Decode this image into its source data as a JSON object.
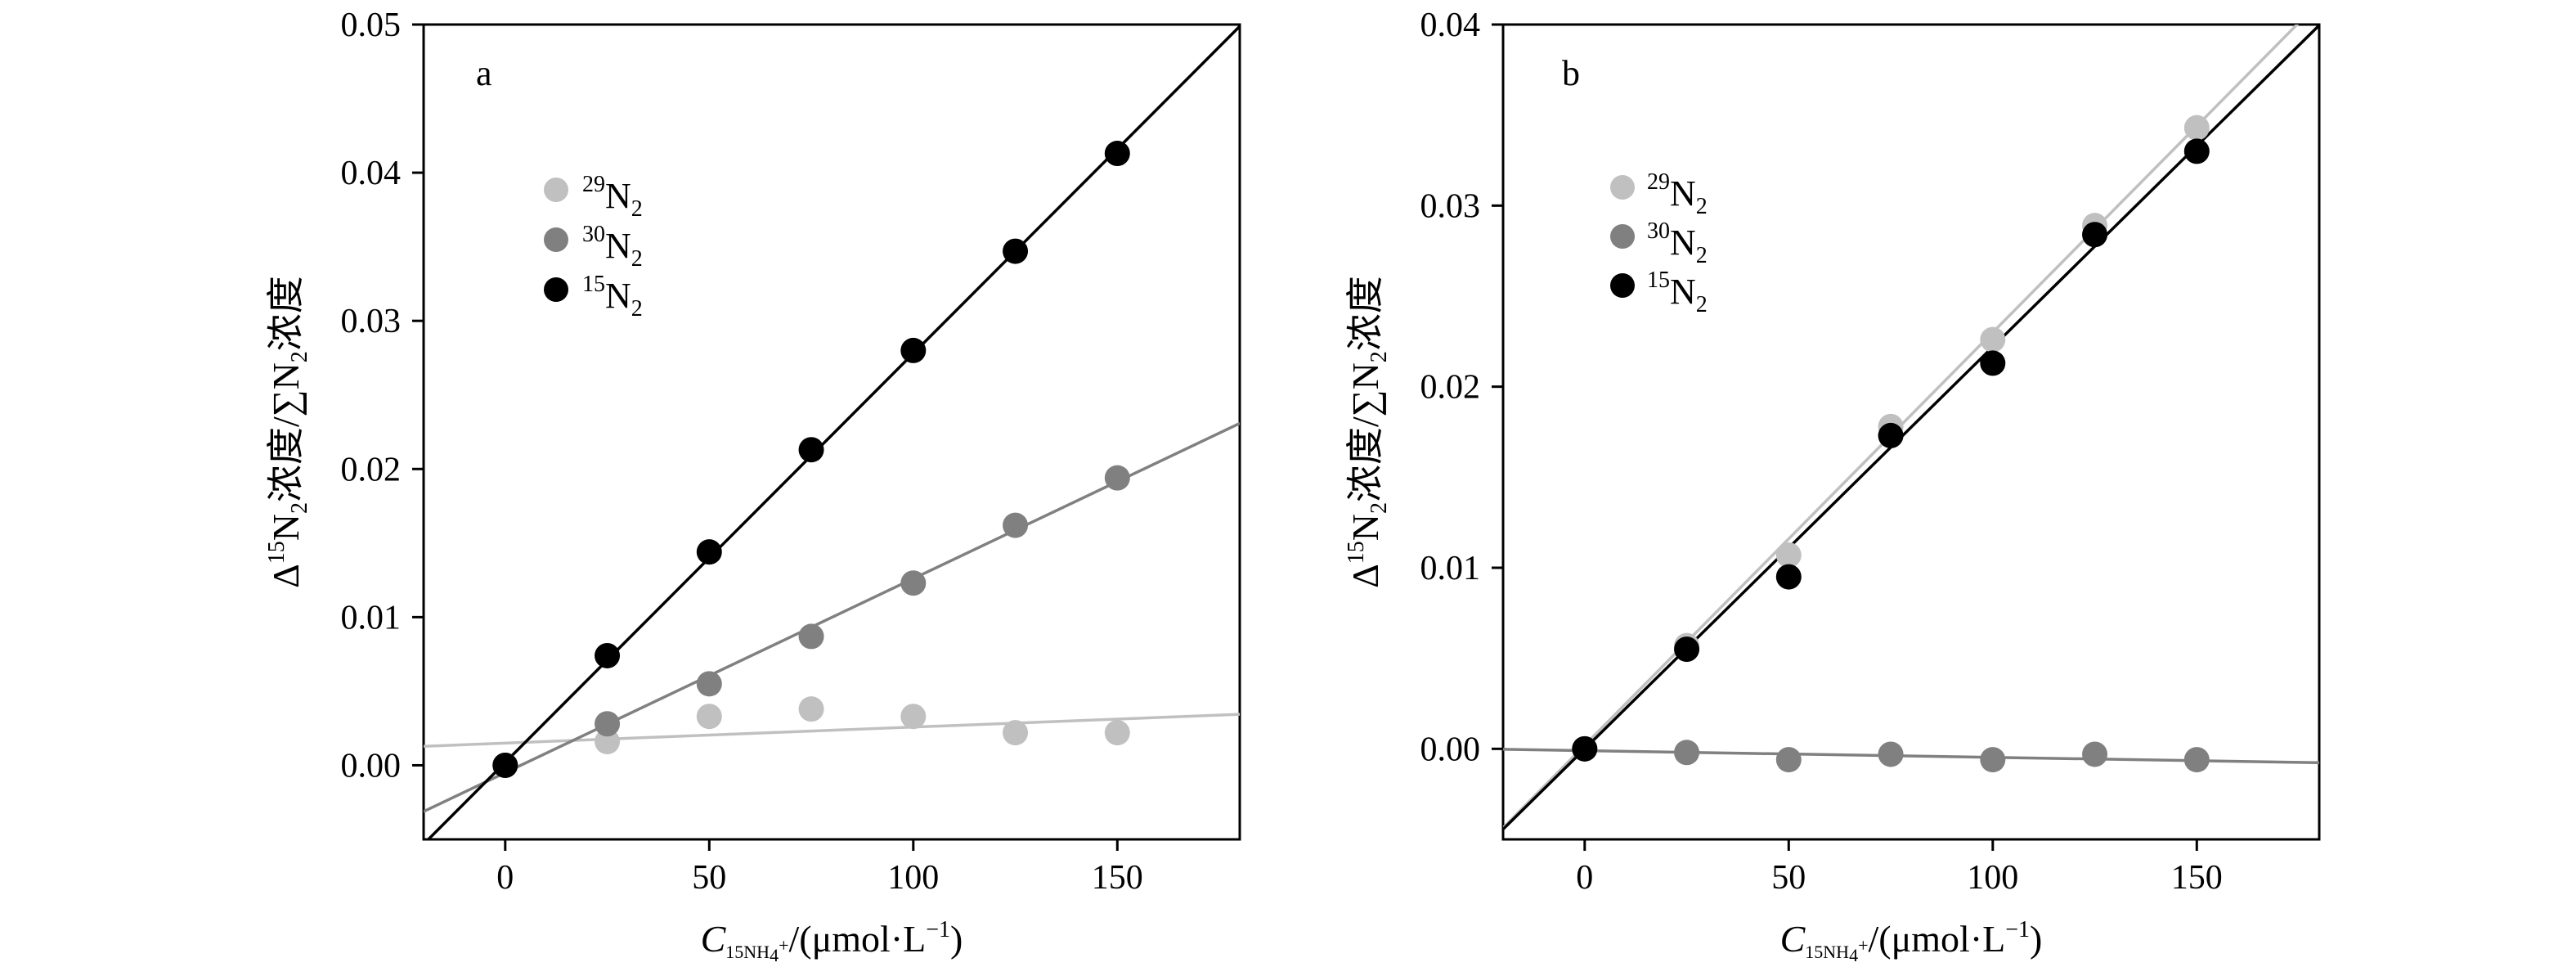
{
  "chart_data": [
    {
      "type": "scatter",
      "panel_label": "a",
      "xlim": [
        -20,
        180
      ],
      "ylim": [
        -0.005,
        0.05
      ],
      "x_ticks": [
        0,
        50,
        100,
        150
      ],
      "y_ticks": [
        0.0,
        0.01,
        0.02,
        0.03,
        0.04,
        0.05
      ],
      "y_tick_labels": [
        "0.00",
        "0.01",
        "0.02",
        "0.03",
        "0.04",
        "0.05"
      ],
      "grid": false,
      "legend_position": "upper-left",
      "xlabel": {
        "c": "C",
        "c_sub_sup": "15",
        "c_sub_ion": "NH",
        "c_sub_ion_sub": "4",
        "c_sub_ion_sup": "+",
        "unit": "/(μmol·L",
        "unit_sup": "−1",
        "unit_close": ")"
      },
      "ylabel": {
        "delta": "Δ",
        "iso_sup": "15",
        "n": "N",
        "n_sub": "2",
        "conc": "浓度",
        "slash_sum": "/∑N",
        "sum_sub": "2",
        "conc2": "浓度"
      },
      "series": [
        {
          "name_sup": "29",
          "name_base": "N",
          "name_sub": "2",
          "color": "#c0c0c0",
          "x": [
            0,
            25,
            50,
            75,
            100,
            125,
            150
          ],
          "y": [
            0.0,
            0.0016,
            0.0033,
            0.0038,
            0.0033,
            0.0022,
            0.0022
          ],
          "fit": {
            "slope": 1.08e-05,
            "intercept": 0.0015
          }
        },
        {
          "name_sup": "30",
          "name_base": "N",
          "name_sub": "2",
          "color": "#808080",
          "x": [
            0,
            25,
            50,
            75,
            100,
            125,
            150
          ],
          "y": [
            0.0,
            0.0028,
            0.0055,
            0.0087,
            0.0123,
            0.0162,
            0.0194
          ],
          "fit": {
            "slope": 0.000131,
            "intercept": -0.0005
          }
        },
        {
          "name_sup": "15",
          "name_base": "N",
          "name_sub": "2",
          "color": "#000000",
          "x": [
            0,
            25,
            50,
            75,
            100,
            125,
            150
          ],
          "y": [
            0.0,
            0.0074,
            0.0144,
            0.0213,
            0.028,
            0.0347,
            0.0413
          ],
          "fit": {
            "slope": 0.000276,
            "intercept": 0.0002
          }
        }
      ]
    },
    {
      "type": "scatter",
      "panel_label": "b",
      "xlim": [
        -20,
        180
      ],
      "ylim": [
        -0.005,
        0.04
      ],
      "x_ticks": [
        0,
        50,
        100,
        150
      ],
      "y_ticks": [
        0.0,
        0.01,
        0.02,
        0.03,
        0.04
      ],
      "y_tick_labels": [
        "0.00",
        "0.01",
        "0.02",
        "0.03",
        "0.04"
      ],
      "grid": false,
      "legend_position": "upper-left",
      "xlabel": {
        "c": "C",
        "c_sub_sup": "15",
        "c_sub_ion": "NH",
        "c_sub_ion_sub": "4",
        "c_sub_ion_sup": "+",
        "unit": "/(μmol·L",
        "unit_sup": "−1",
        "unit_close": ")"
      },
      "ylabel": {
        "delta": "Δ",
        "iso_sup": "15",
        "n": "N",
        "n_sub": "2",
        "conc": "浓度",
        "slash_sum": "/∑N",
        "sum_sub": "2",
        "conc2": "浓度"
      },
      "series": [
        {
          "name_sup": "29",
          "name_base": "N",
          "name_sub": "2",
          "color": "#c0c0c0",
          "x": [
            0,
            25,
            50,
            75,
            100,
            125,
            150
          ],
          "y": [
            0.0,
            0.0057,
            0.0107,
            0.0178,
            0.0226,
            0.0289,
            0.0343
          ],
          "fit": {
            "slope": 0.000228,
            "intercept": 0.0002
          }
        },
        {
          "name_sup": "30",
          "name_base": "N",
          "name_sub": "2",
          "color": "#808080",
          "x": [
            0,
            25,
            50,
            75,
            100,
            125,
            150
          ],
          "y": [
            0.0,
            -0.0002,
            -0.0006,
            -0.0003,
            -0.0006,
            -0.0003,
            -0.0006
          ],
          "fit": {
            "slope": -3.7e-06,
            "intercept": -0.0001
          }
        },
        {
          "name_sup": "15",
          "name_base": "N",
          "name_sub": "2",
          "color": "#000000",
          "x": [
            0,
            25,
            50,
            75,
            100,
            125,
            150
          ],
          "y": [
            0.0,
            0.0055,
            0.0095,
            0.0173,
            0.0213,
            0.0284,
            0.033
          ],
          "fit": {
            "slope": 0.000222,
            "intercept": 0.0
          }
        }
      ]
    }
  ]
}
